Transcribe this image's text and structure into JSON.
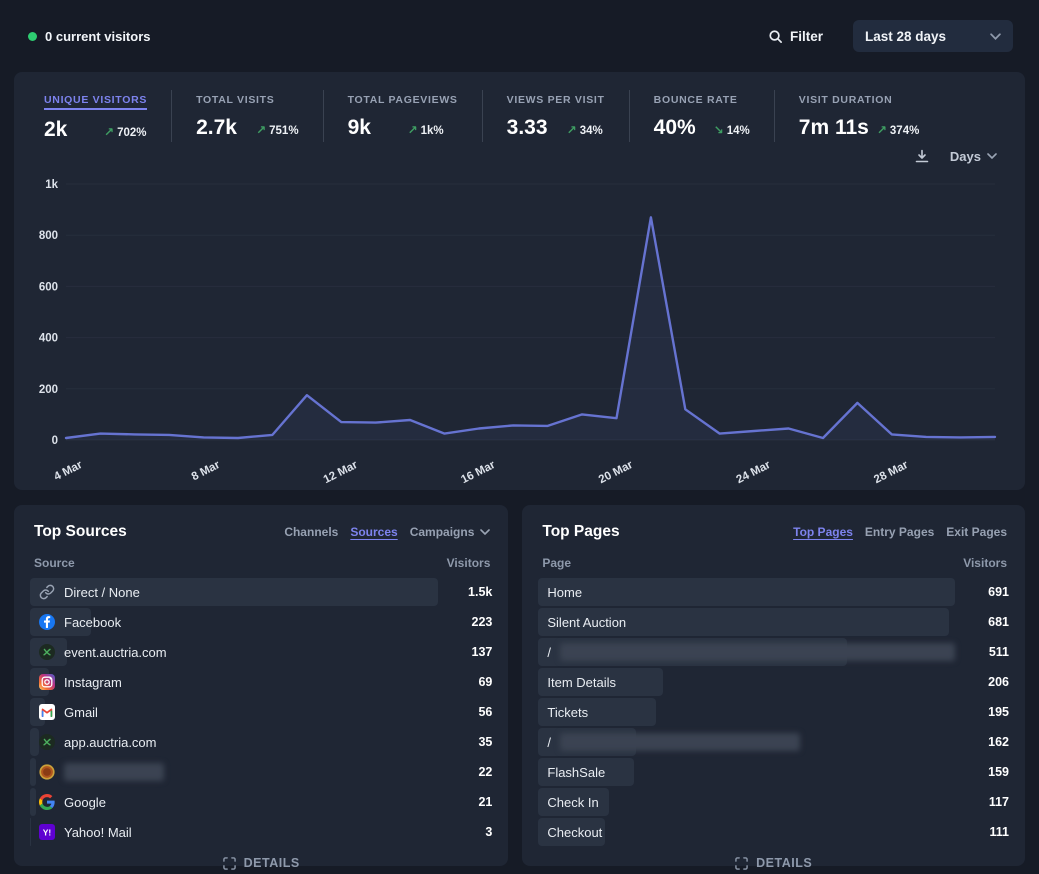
{
  "topbar": {
    "current_visitors": "0 current visitors",
    "filter_label": "Filter",
    "date_range": "Last 28 days"
  },
  "stats": [
    {
      "label": "UNIQUE VISITORS",
      "value": "2k",
      "arrow": "↗",
      "change": "702%",
      "active": true
    },
    {
      "label": "TOTAL VISITS",
      "value": "2.7k",
      "arrow": "↗",
      "change": "751%",
      "active": false
    },
    {
      "label": "TOTAL PAGEVIEWS",
      "value": "9k",
      "arrow": "↗",
      "change": "1k%",
      "active": false
    },
    {
      "label": "VIEWS PER VISIT",
      "value": "3.33",
      "arrow": "↗",
      "change": "34%",
      "active": false
    },
    {
      "label": "BOUNCE RATE",
      "value": "40%",
      "arrow": "↘",
      "change": "14%",
      "active": false
    },
    {
      "label": "VISIT DURATION",
      "value": "7m 11s",
      "arrow": "↗",
      "change": "374%",
      "active": false
    }
  ],
  "chart_controls": {
    "interval_label": "Days"
  },
  "chart_data": {
    "type": "line",
    "title": "Unique visitors over time (Last 28 days)",
    "x": [
      "4 Mar",
      "5 Mar",
      "6 Mar",
      "7 Mar",
      "8 Mar",
      "9 Mar",
      "10 Mar",
      "11 Mar",
      "12 Mar",
      "13 Mar",
      "14 Mar",
      "15 Mar",
      "16 Mar",
      "17 Mar",
      "18 Mar",
      "19 Mar",
      "20 Mar",
      "21 Mar",
      "22 Mar",
      "23 Mar",
      "24 Mar",
      "25 Mar",
      "26 Mar",
      "27 Mar",
      "28 Mar",
      "29 Mar",
      "30 Mar",
      "31 Mar"
    ],
    "values": [
      8,
      25,
      22,
      20,
      10,
      8,
      20,
      175,
      70,
      68,
      78,
      25,
      45,
      57,
      55,
      100,
      85,
      870,
      120,
      25,
      35,
      45,
      8,
      145,
      22,
      12,
      10,
      12
    ],
    "x_tick_labels": [
      "4 Mar",
      "8 Mar",
      "12 Mar",
      "16 Mar",
      "20 Mar",
      "24 Mar",
      "28 Mar"
    ],
    "y_ticks": [
      0,
      200,
      400,
      600,
      800,
      1000
    ],
    "y_tick_labels": [
      "0",
      "200",
      "400",
      "600",
      "800",
      "1k"
    ],
    "ylim": [
      0,
      1000
    ],
    "grid": true,
    "legend": false,
    "line_color": "#6673d1",
    "area_fill": "rgba(102,115,209,0.08)"
  },
  "top_sources": {
    "title": "Top Sources",
    "tabs": [
      {
        "label": "Channels",
        "active": false
      },
      {
        "label": "Sources",
        "active": true
      },
      {
        "label": "Campaigns",
        "active": false,
        "has_chevron": true
      }
    ],
    "columns": {
      "left": "Source",
      "right": "Visitors"
    },
    "rows": [
      {
        "label": "Direct / None",
        "icon": "link",
        "value": "1.5k",
        "numeric": 1500
      },
      {
        "label": "Facebook",
        "icon": "facebook",
        "value": "223",
        "numeric": 223
      },
      {
        "label": "event.auctria.com",
        "icon": "auctria",
        "value": "137",
        "numeric": 137
      },
      {
        "label": "Instagram",
        "icon": "instagram",
        "value": "69",
        "numeric": 69
      },
      {
        "label": "Gmail",
        "icon": "gmail",
        "value": "56",
        "numeric": 56
      },
      {
        "label": "app.auctria.com",
        "icon": "auctria",
        "value": "35",
        "numeric": 35
      },
      {
        "label": "",
        "redacted": true,
        "redacted_width": 100,
        "icon": "orange-favicon",
        "value": "22",
        "numeric": 22
      },
      {
        "label": "Google",
        "icon": "google",
        "value": "21",
        "numeric": 21
      },
      {
        "label": "Yahoo! Mail",
        "icon": "yahoo",
        "value": "3",
        "numeric": 3
      }
    ],
    "details_label": "DETAILS"
  },
  "top_pages": {
    "title": "Top Pages",
    "tabs": [
      {
        "label": "Top Pages",
        "active": true
      },
      {
        "label": "Entry Pages",
        "active": false
      },
      {
        "label": "Exit Pages",
        "active": false
      }
    ],
    "columns": {
      "left": "Page",
      "right": "Visitors"
    },
    "rows": [
      {
        "label": "Home",
        "value": "691",
        "numeric": 691
      },
      {
        "label": "Silent Auction",
        "value": "681",
        "numeric": 681
      },
      {
        "label": "/",
        "redacted": true,
        "redacted_width": 395,
        "value": "511",
        "numeric": 511
      },
      {
        "label": "Item Details",
        "value": "206",
        "numeric": 206
      },
      {
        "label": "Tickets",
        "value": "195",
        "numeric": 195
      },
      {
        "label": "/",
        "redacted": true,
        "redacted_width": 240,
        "value": "162",
        "numeric": 162
      },
      {
        "label": "FlashSale",
        "value": "159",
        "numeric": 159
      },
      {
        "label": "Check In",
        "value": "117",
        "numeric": 117
      },
      {
        "label": "Checkout",
        "value": "111",
        "numeric": 111
      }
    ],
    "details_label": "DETAILS"
  },
  "colors": {
    "background": "#161b26",
    "panel": "#1f2634",
    "accent": "#7d83ee",
    "positive": "#3f9e63",
    "line": "#6673d1",
    "bar": "#2a3342",
    "live_dot": "#2ecc71"
  }
}
